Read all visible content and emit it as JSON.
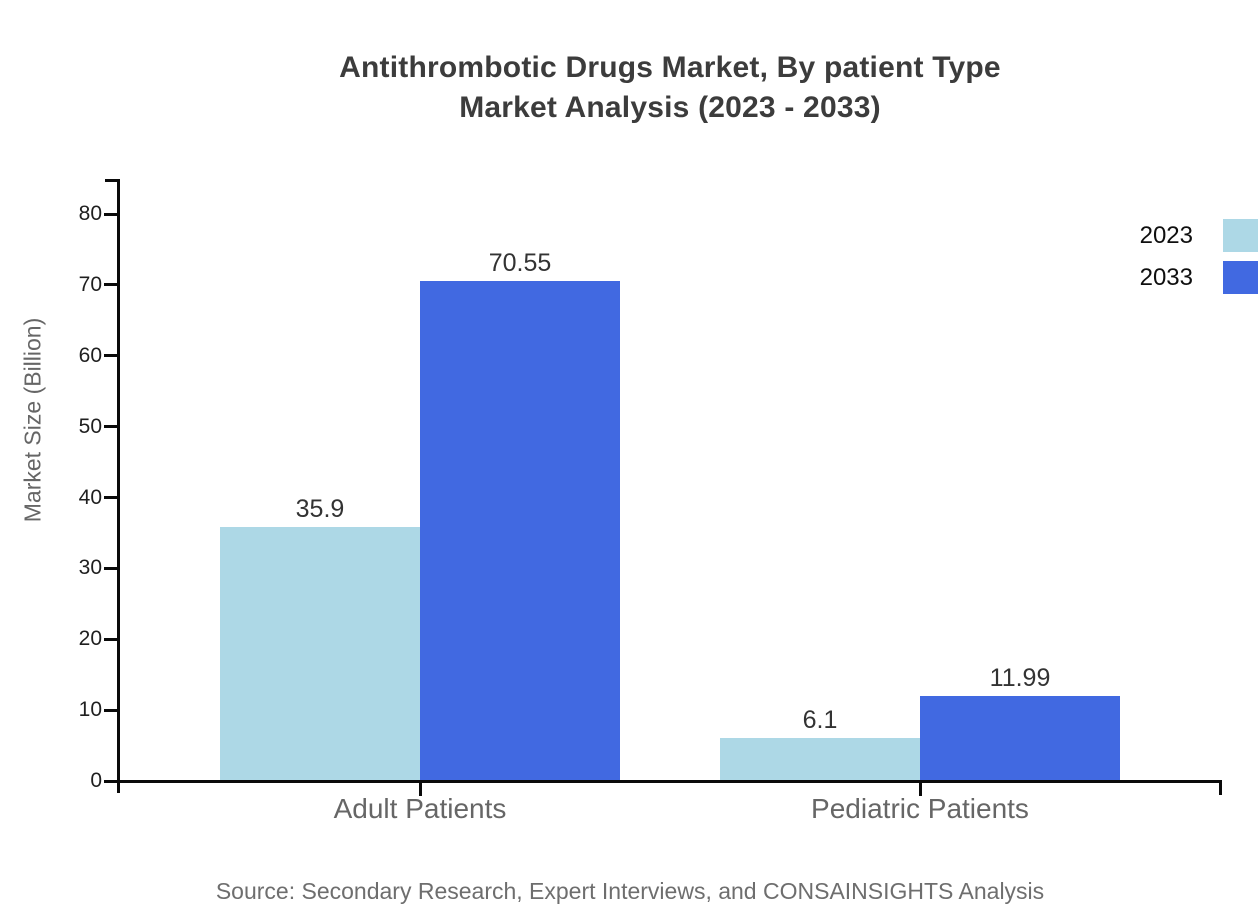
{
  "chart_data": {
    "type": "bar",
    "title": "Antithrombotic Drugs Market, By patient Type",
    "subtitle": "Market Analysis (2023 - 2033)",
    "categories": [
      "Adult Patients",
      "Pediatric Patients"
    ],
    "series": [
      {
        "name": "2023",
        "color": "#ADD8E6",
        "values": [
          35.9,
          6.1
        ]
      },
      {
        "name": "2033",
        "color": "#4169E1",
        "values": [
          70.55,
          11.99
        ]
      }
    ],
    "value_labels": [
      [
        "35.9",
        "6.1"
      ],
      [
        "70.55",
        "11.99"
      ]
    ],
    "xlabel": "",
    "ylabel": "Market Size (Billion)",
    "ylim": [
      0,
      80
    ],
    "yticks": [
      0,
      10,
      20,
      30,
      40,
      50,
      60,
      70,
      80
    ],
    "grid": false,
    "legend_position": "top-right",
    "source": "Source: Secondary Research, Expert Interviews, and CONSAINSIGHTS Analysis"
  },
  "colors": {
    "series_2023": "#ADD8E6",
    "series_2033": "#4169E1",
    "axis": "#0a0a0a",
    "title_text": "#3c3c3c",
    "category_text": "#666666",
    "tick_text": "#1f1f1f",
    "value_text": "#333333",
    "source_text": "#6e6e6e",
    "background": "#ffffff"
  }
}
